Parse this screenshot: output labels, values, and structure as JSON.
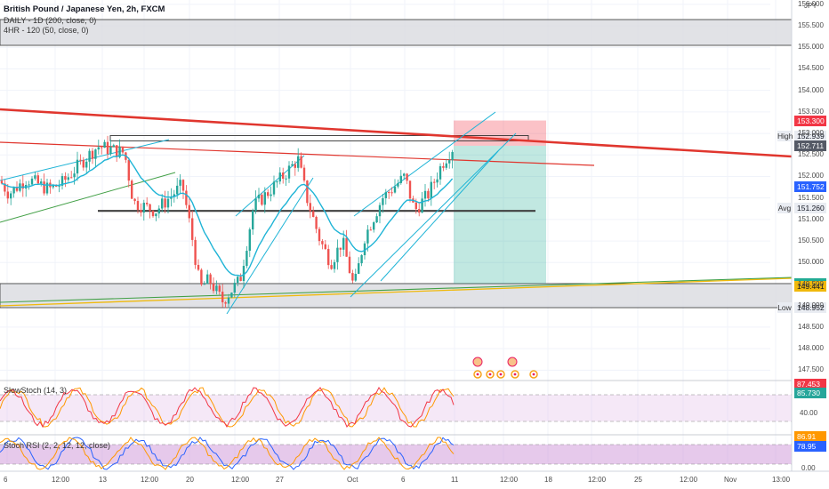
{
  "legend": {
    "title": "British Pound / Japanese Yen, 2h, FXCM",
    "ma1": "DAILY - 1D (200, close, 0)",
    "ma2": "4HR - 120 (50, close, 0)",
    "stoch": "SlowStoch (14, 3)",
    "stochrsi": "Stoch RSI (2, 2, 12, 12, close)"
  },
  "axis": {
    "currency": "JPY",
    "price_ticks": [
      "156.000",
      "155.500",
      "155.000",
      "154.500",
      "154.000",
      "153.500",
      "153.000",
      "152.500",
      "152.000",
      "151.500",
      "151.000",
      "150.500",
      "150.000",
      "149.500",
      "149.000",
      "148.500",
      "148.000",
      "147.500"
    ],
    "time_ticks": [
      "6",
      "12:00",
      "13",
      "12:00",
      "20",
      "12:00",
      "27",
      "Oct",
      "6",
      "11",
      "12:00",
      "18",
      "12:00",
      "25",
      "12:00",
      "Nov",
      "13:00"
    ],
    "stoch_ticks": [
      "40.00"
    ],
    "rsi_ticks": [
      "0.00"
    ]
  },
  "price_badges": [
    {
      "label": "",
      "value": "153.300",
      "color": "#f23645"
    },
    {
      "label": "High",
      "value": "152.939",
      "color": "#e9ecf2"
    },
    {
      "label": "",
      "value": "152.713",
      "color": "#f23645"
    },
    {
      "label": "",
      "value": "152.711",
      "color": "#555a66"
    },
    {
      "label": "",
      "value": "151.752",
      "color": "#2962ff"
    },
    {
      "label": "Avg",
      "value": "151.260",
      "color": "#e9ecf2"
    },
    {
      "label": "",
      "value": "149.511",
      "color": "#22ab94"
    },
    {
      "label": "",
      "value": "149.441",
      "color": "#f0b90b"
    },
    {
      "label": "Low",
      "value": "148.952",
      "color": "#e9ecf2"
    }
  ],
  "osc_badges": [
    {
      "value": "87.453",
      "color": "#f23645"
    },
    {
      "value": "85.730",
      "color": "#26a69a"
    },
    {
      "value": "86.91",
      "color": "#ff9800"
    },
    {
      "value": "78.95",
      "color": "#2962ff"
    }
  ],
  "colors": {
    "up": "#26a69a",
    "down": "#ef5350",
    "trend": "#e0362e",
    "channel": "#1fb4d6",
    "ma_fast": "#1fb4d6",
    "support": "#404040"
  },
  "chart_data": {
    "type": "candlestick",
    "symbol": "GBPJPY",
    "timeframe": "2h",
    "y_range": [
      147.3,
      156.1
    ],
    "start_close": 151.9,
    "key_levels": [
      {
        "name": "support-resistance",
        "value": 151.2
      },
      {
        "name": "high",
        "value": 152.939
      },
      {
        "name": "avg",
        "value": 151.26
      },
      {
        "name": "low",
        "value": 148.952
      }
    ],
    "position": {
      "entry": 152.713,
      "stop": 153.3,
      "target": 149.511
    },
    "waypoints": [
      [
        0,
        151.9
      ],
      [
        10,
        151.6
      ],
      [
        30,
        151.95
      ],
      [
        55,
        151.7
      ],
      [
        70,
        151.85
      ],
      [
        95,
        152.4
      ],
      [
        110,
        152.7
      ],
      [
        140,
        152.55
      ],
      [
        150,
        151.4
      ],
      [
        175,
        151.2
      ],
      [
        205,
        151.8
      ],
      [
        215,
        150.7
      ],
      [
        225,
        149.4
      ],
      [
        235,
        149.6
      ],
      [
        250,
        149.1
      ],
      [
        270,
        149.6
      ],
      [
        285,
        151.3
      ],
      [
        300,
        151.6
      ],
      [
        318,
        152.0
      ],
      [
        335,
        152.4
      ],
      [
        345,
        151.5
      ],
      [
        360,
        150.5
      ],
      [
        372,
        150.0
      ],
      [
        385,
        150.5
      ],
      [
        398,
        149.4
      ],
      [
        410,
        150.6
      ],
      [
        430,
        151.5
      ],
      [
        455,
        152.0
      ],
      [
        466,
        151.2
      ],
      [
        482,
        151.6
      ],
      [
        497,
        152.3
      ],
      [
        510,
        152.7
      ]
    ],
    "stoch_range": [
      0,
      100
    ],
    "rsi_range": [
      0,
      100
    ]
  }
}
